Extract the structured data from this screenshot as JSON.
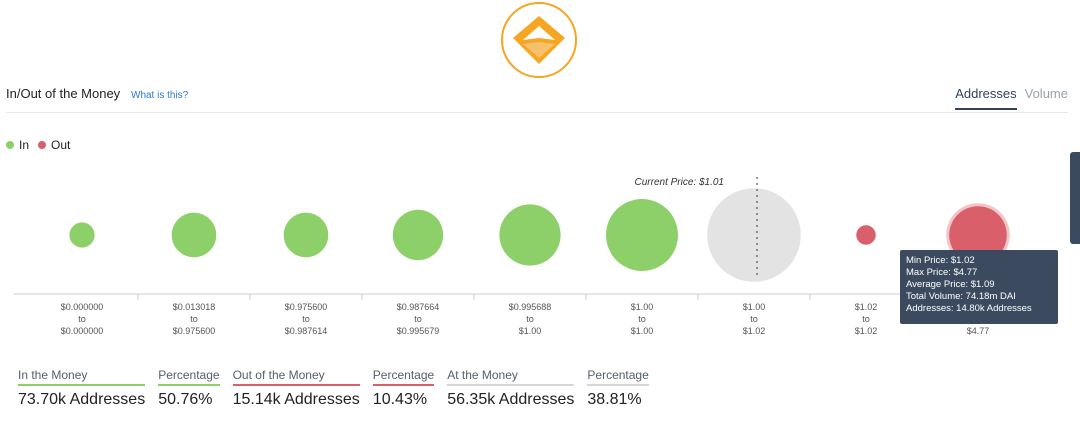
{
  "header": {
    "title": "In/Out of the Money",
    "help_link": "What is this?",
    "tabs": [
      {
        "label": "Addresses",
        "active": true
      },
      {
        "label": "Volume",
        "active": false
      }
    ]
  },
  "legend": [
    {
      "label": "In",
      "color": "#8dd06a"
    },
    {
      "label": "Out",
      "color": "#d9606b"
    }
  ],
  "chart_data": {
    "type": "scatter",
    "annotation": "Current Price: $1.01",
    "categories": [
      {
        "line1": "$0.000000",
        "line2": "to",
        "line3": "$0.000000",
        "status": "in"
      },
      {
        "line1": "$0.013018",
        "line2": "to",
        "line3": "$0.975600",
        "status": "in"
      },
      {
        "line1": "$0.975600",
        "line2": "to",
        "line3": "$0.987614",
        "status": "in"
      },
      {
        "line1": "$0.987664",
        "line2": "to",
        "line3": "$0.995679",
        "status": "in"
      },
      {
        "line1": "$0.995688",
        "line2": "to",
        "line3": "$1.00",
        "status": "in"
      },
      {
        "line1": "$1.00",
        "line2": "to",
        "line3": "$1.00",
        "status": "in"
      },
      {
        "line1": "$1.00",
        "line2": "to",
        "line3": "$1.02",
        "status": "at"
      },
      {
        "line1": "$1.02",
        "line2": "to",
        "line3": "$1.02",
        "status": "out"
      },
      {
        "line1": "$1.02",
        "line2": "to",
        "line3": "$4.77",
        "status": "out"
      }
    ],
    "relative_size": [
      0.35,
      0.62,
      0.62,
      0.7,
      0.85,
      1.0,
      1.3,
      0.27,
      0.8
    ],
    "colors": {
      "in": "#8dd06a",
      "out": "#d9606b",
      "at": "#e3e3e3"
    }
  },
  "tooltip": {
    "min_price": "Min Price: $1.02",
    "max_price": "Max Price: $4.77",
    "avg_price": "Average Price: $1.09",
    "total_volume": "Total Volume: 74.18m DAI",
    "addresses": "Addresses: 14.80k Addresses"
  },
  "stats": [
    {
      "label": "In the Money",
      "value": "73.70k Addresses",
      "color": "#8dd06a"
    },
    {
      "label": "Percentage",
      "value": "50.76%",
      "color": "#8dd06a"
    },
    {
      "label": "Out of the Money",
      "value": "15.14k Addresses",
      "color": "#d9606b"
    },
    {
      "label": "Percentage",
      "value": "10.43%",
      "color": "#d9606b"
    },
    {
      "label": "At the Money",
      "value": "56.35k Addresses",
      "color": "#d4d7db"
    },
    {
      "label": "Percentage",
      "value": "38.81%",
      "color": "#d4d7db"
    }
  ]
}
